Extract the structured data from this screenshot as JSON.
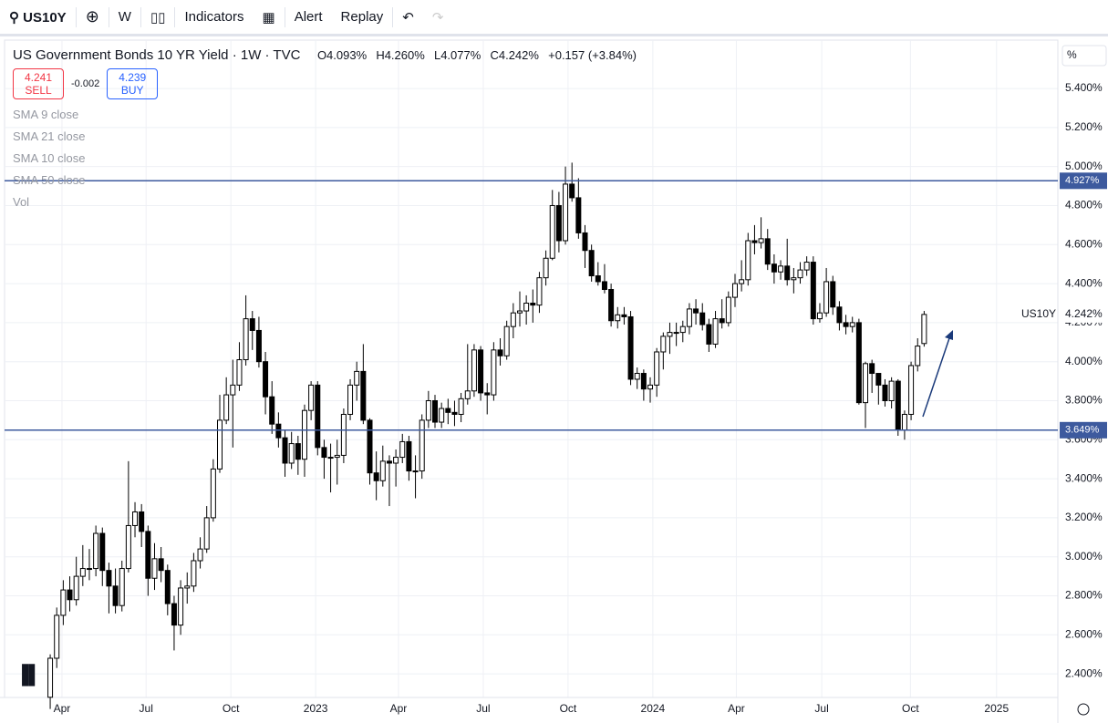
{
  "toolbar": {
    "symbol": "US10Y",
    "interval": "W",
    "indicators": "Indicators",
    "alert": "Alert",
    "replay": "Replay"
  },
  "legend": {
    "title": "US Government Bonds 10 YR Yield · 1W · TVC",
    "open": "O4.093%",
    "high": "H4.260%",
    "low": "L4.077%",
    "close": "C4.242%",
    "change": "+0.157 (+3.84%)",
    "sell_price": "4.241",
    "sell": "SELL",
    "spread": "-0.002",
    "buy_price": "4.239",
    "buy": "BUY",
    "indicators": [
      "SMA 9 close",
      "SMA 21 close",
      "SMA 10 close",
      "SMA 50 close",
      "Vol"
    ]
  },
  "chart_data": {
    "type": "candlestick",
    "axis_unit": "%",
    "symbol_label": "US10Y",
    "up_color": "#ffffff",
    "down_color": "#000000",
    "outline_color": "#000000",
    "grid": true,
    "open": [
      2.28,
      2.48,
      2.7,
      2.83,
      2.78,
      2.9,
      2.94,
      2.94,
      3.12,
      2.93,
      2.85,
      2.75,
      2.94,
      3.16,
      3.23,
      3.13,
      2.89,
      2.99,
      2.93,
      2.76,
      2.65,
      2.84,
      2.85,
      2.98,
      3.04,
      3.2,
      3.45,
      3.7,
      3.83,
      3.88,
      4.01,
      4.22,
      4.16,
      4.0,
      3.82,
      3.68,
      3.61,
      3.48,
      3.58,
      3.5,
      3.75,
      3.88,
      3.56,
      3.51,
      3.51,
      3.52,
      3.73,
      3.88,
      3.95,
      3.7,
      3.43,
      3.39,
      3.49,
      3.48,
      3.51,
      3.59,
      3.44,
      3.44,
      3.7,
      3.8,
      3.69,
      3.76,
      3.74,
      3.73,
      3.81,
      3.85,
      4.06,
      3.84,
      3.83,
      4.06,
      4.03,
      4.18,
      4.25,
      4.26,
      4.3,
      4.29,
      4.43,
      4.53,
      4.8,
      4.62,
      4.91,
      4.84,
      4.66,
      4.57,
      4.44,
      4.41,
      4.37,
      4.21,
      4.24,
      4.23,
      3.91,
      3.94,
      3.86,
      3.88,
      4.05,
      4.13,
      4.15,
      4.15,
      4.18,
      4.27,
      4.25,
      4.19,
      4.09,
      4.22,
      4.2,
      4.33,
      4.4,
      4.42,
      4.62,
      4.61,
      4.63,
      4.5,
      4.46,
      4.49,
      4.42,
      4.43,
      4.47,
      4.51,
      4.22,
      4.25,
      4.41,
      4.28,
      4.2,
      4.18,
      4.2,
      3.79,
      3.99,
      3.94,
      3.88,
      3.8,
      3.9,
      3.65,
      3.73,
      3.98,
      4.093
    ],
    "high": [
      2.5,
      2.74,
      2.88,
      2.9,
      3.0,
      3.06,
      3.04,
      3.16,
      3.15,
      2.97,
      2.94,
      2.98,
      3.49,
      3.28,
      3.27,
      3.16,
      3.07,
      3.05,
      2.96,
      2.8,
      2.88,
      2.92,
      3.02,
      3.1,
      3.26,
      3.5,
      3.83,
      3.92,
      4.01,
      4.1,
      4.34,
      4.26,
      4.23,
      4.05,
      3.9,
      3.74,
      3.65,
      3.64,
      3.62,
      3.78,
      3.9,
      3.9,
      3.6,
      3.58,
      3.6,
      3.76,
      3.91,
      4.0,
      4.09,
      3.71,
      3.54,
      3.57,
      3.52,
      3.55,
      3.63,
      3.62,
      3.52,
      3.73,
      3.85,
      3.83,
      3.79,
      3.81,
      3.8,
      3.84,
      4.09,
      4.09,
      4.08,
      3.89,
      4.1,
      4.12,
      4.21,
      4.3,
      4.36,
      4.34,
      4.37,
      4.46,
      4.57,
      4.88,
      4.87,
      5.0,
      5.02,
      4.94,
      4.7,
      4.6,
      4.51,
      4.5,
      4.4,
      4.28,
      4.28,
      4.26,
      3.97,
      3.96,
      3.92,
      4.07,
      4.15,
      4.2,
      4.2,
      4.21,
      4.3,
      4.32,
      4.3,
      4.22,
      4.26,
      4.32,
      4.36,
      4.45,
      4.52,
      4.66,
      4.7,
      4.74,
      4.68,
      4.55,
      4.52,
      4.63,
      4.48,
      4.51,
      4.54,
      4.54,
      4.3,
      4.48,
      4.44,
      4.31,
      4.24,
      4.23,
      4.22,
      4.0,
      4.01,
      3.94,
      3.91,
      3.92,
      3.91,
      3.75,
      4.0,
      4.12,
      4.26
    ],
    "low": [
      2.22,
      2.43,
      2.65,
      2.72,
      2.75,
      2.85,
      2.88,
      2.9,
      2.85,
      2.71,
      2.71,
      2.72,
      2.92,
      3.1,
      3.05,
      2.8,
      2.83,
      2.87,
      2.7,
      2.52,
      2.6,
      2.76,
      2.82,
      2.94,
      3.02,
      3.18,
      3.43,
      3.68,
      3.56,
      3.85,
      3.98,
      4.06,
      3.97,
      3.73,
      3.63,
      3.56,
      3.41,
      3.45,
      3.42,
      3.41,
      3.7,
      3.52,
      3.4,
      3.33,
      3.37,
      3.48,
      3.7,
      3.8,
      3.68,
      3.37,
      3.29,
      3.36,
      3.26,
      3.36,
      3.48,
      3.39,
      3.3,
      3.4,
      3.66,
      3.66,
      3.66,
      3.68,
      3.67,
      3.69,
      3.78,
      3.82,
      3.8,
      3.73,
      3.8,
      3.98,
      4.01,
      4.12,
      4.18,
      4.19,
      4.2,
      4.25,
      4.39,
      4.52,
      4.56,
      4.6,
      4.82,
      4.63,
      4.48,
      4.41,
      4.39,
      4.35,
      4.18,
      4.17,
      4.19,
      3.88,
      3.86,
      3.8,
      3.79,
      3.82,
      3.96,
      4.04,
      4.08,
      4.1,
      4.14,
      4.19,
      4.16,
      4.05,
      4.07,
      4.17,
      4.18,
      4.28,
      4.36,
      4.39,
      4.55,
      4.58,
      4.47,
      4.4,
      4.42,
      4.39,
      4.35,
      4.4,
      4.44,
      4.19,
      4.2,
      4.23,
      4.24,
      4.16,
      4.14,
      4.15,
      3.78,
      3.66,
      3.84,
      3.78,
      3.77,
      3.76,
      3.62,
      3.6,
      3.7,
      3.95,
      4.077
    ],
    "close": [
      2.48,
      2.7,
      2.83,
      2.78,
      2.9,
      2.94,
      2.94,
      3.12,
      2.93,
      2.85,
      2.75,
      2.94,
      3.16,
      3.23,
      3.13,
      2.89,
      2.99,
      2.93,
      2.76,
      2.65,
      2.84,
      2.85,
      2.98,
      3.04,
      3.2,
      3.45,
      3.7,
      3.83,
      3.88,
      4.01,
      4.22,
      4.16,
      4.0,
      3.82,
      3.68,
      3.61,
      3.48,
      3.58,
      3.5,
      3.75,
      3.88,
      3.56,
      3.51,
      3.51,
      3.52,
      3.73,
      3.88,
      3.95,
      3.7,
      3.43,
      3.39,
      3.49,
      3.48,
      3.51,
      3.59,
      3.44,
      3.44,
      3.7,
      3.8,
      3.69,
      3.76,
      3.74,
      3.73,
      3.81,
      3.85,
      4.06,
      3.84,
      3.83,
      4.06,
      4.03,
      4.18,
      4.25,
      4.26,
      4.3,
      4.29,
      4.43,
      4.53,
      4.8,
      4.62,
      4.91,
      4.84,
      4.66,
      4.57,
      4.44,
      4.41,
      4.37,
      4.21,
      4.24,
      4.23,
      3.91,
      3.94,
      3.86,
      3.88,
      4.05,
      4.13,
      4.15,
      4.15,
      4.18,
      4.27,
      4.25,
      4.19,
      4.09,
      4.22,
      4.2,
      4.33,
      4.4,
      4.42,
      4.62,
      4.61,
      4.63,
      4.5,
      4.46,
      4.49,
      4.42,
      4.43,
      4.47,
      4.51,
      4.22,
      4.25,
      4.41,
      4.28,
      4.2,
      4.18,
      4.2,
      3.79,
      3.99,
      3.94,
      3.88,
      3.8,
      3.9,
      3.65,
      3.73,
      3.98,
      4.08,
      4.242
    ],
    "xlim": [
      -7,
      154.5
    ],
    "xticks": [
      {
        "value": 1.8,
        "label": "Apr"
      },
      {
        "value": 14.7,
        "label": "Jul"
      },
      {
        "value": 27.7,
        "label": "Oct"
      },
      {
        "value": 40.7,
        "label": "2023"
      },
      {
        "value": 53.4,
        "label": "Apr"
      },
      {
        "value": 66.4,
        "label": "Jul"
      },
      {
        "value": 79.4,
        "label": "Oct"
      },
      {
        "value": 92.4,
        "label": "2024"
      },
      {
        "value": 105.2,
        "label": "Apr"
      },
      {
        "value": 118.3,
        "label": "Jul"
      },
      {
        "value": 131.9,
        "label": "Oct"
      },
      {
        "value": 145.1,
        "label": "2025"
      }
    ],
    "ylim": [
      2.279,
      5.648
    ],
    "yticks": [
      {
        "value": 2.4,
        "label": "2.400%"
      },
      {
        "value": 2.6,
        "label": "2.600%"
      },
      {
        "value": 2.8,
        "label": "2.800%"
      },
      {
        "value": 3.0,
        "label": "3.000%"
      },
      {
        "value": 3.2,
        "label": "3.200%"
      },
      {
        "value": 3.4,
        "label": "3.400%"
      },
      {
        "value": 3.6,
        "label": "3.600%"
      },
      {
        "value": 3.8,
        "label": "3.800%"
      },
      {
        "value": 4.0,
        "label": "4.000%"
      },
      {
        "value": 4.2,
        "label": "4.200%"
      },
      {
        "value": 4.4,
        "label": "4.400%"
      },
      {
        "value": 4.6,
        "label": "4.600%"
      },
      {
        "value": 4.8,
        "label": "4.800%"
      },
      {
        "value": 5.0,
        "label": "5.000%"
      },
      {
        "value": 5.2,
        "label": "5.200%"
      },
      {
        "value": 5.4,
        "label": "5.400%"
      }
    ],
    "hlines": [
      {
        "value": 4.927,
        "label": "4.927%",
        "color": "#3d5a9e"
      },
      {
        "value": 3.649,
        "label": "3.649%",
        "color": "#3d5a9e"
      }
    ],
    "last_price": {
      "value": 4.242,
      "label": "4.242%"
    }
  }
}
